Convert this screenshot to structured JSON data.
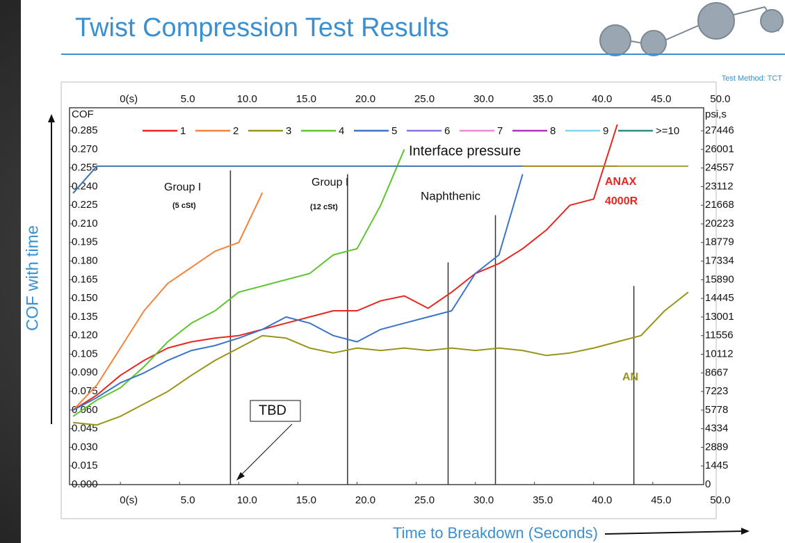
{
  "chart_data": {
    "type": "line",
    "title": "Twist Compression Test Results",
    "note": "Test Method: TCT",
    "x_label": "Time to Breakdown (Seconds)",
    "y_label": "COF with time",
    "y_unit": "COF",
    "y2_unit": "psi,s",
    "pressure_label": "Interface pressure",
    "legend": "top",
    "grid": false,
    "x": [
      -4,
      -2,
      0,
      2,
      4,
      6,
      8,
      10,
      12,
      14,
      16,
      18,
      20,
      22,
      24,
      26,
      28,
      30,
      32,
      34,
      36,
      38,
      40,
      42,
      44,
      46,
      48
    ],
    "xlim": [
      -4.3,
      49.3
    ],
    "xticks": [
      {
        "value": 0,
        "label": "0(s)"
      },
      {
        "value": 5,
        "label": "5.0"
      },
      {
        "value": 10,
        "label": "10.0"
      },
      {
        "value": 15,
        "label": "15.0"
      },
      {
        "value": 20,
        "label": "20.0"
      },
      {
        "value": 25,
        "label": "25.0"
      },
      {
        "value": 30,
        "label": "30.0"
      },
      {
        "value": 35,
        "label": "35.0"
      },
      {
        "value": 40,
        "label": "40.0"
      },
      {
        "value": 45,
        "label": "45.0"
      },
      {
        "value": 50,
        "label": "50.0"
      }
    ],
    "ylim": [
      0,
      0.3035
    ],
    "yticks": [
      {
        "value": 0,
        "label": "0.000"
      },
      {
        "value": 0.015,
        "label": "0.015"
      },
      {
        "value": 0.03,
        "label": "0.030"
      },
      {
        "value": 0.045,
        "label": "0.045"
      },
      {
        "value": 0.06,
        "label": "0.060"
      },
      {
        "value": 0.075,
        "label": "0.075"
      },
      {
        "value": 0.09,
        "label": "0.090"
      },
      {
        "value": 0.105,
        "label": "0.105"
      },
      {
        "value": 0.12,
        "label": "0.120"
      },
      {
        "value": 0.135,
        "label": "0.135"
      },
      {
        "value": 0.15,
        "label": "0.150"
      },
      {
        "value": 0.165,
        "label": "0.165"
      },
      {
        "value": 0.18,
        "label": "0.180"
      },
      {
        "value": 0.195,
        "label": "0.195"
      },
      {
        "value": 0.21,
        "label": "0.210"
      },
      {
        "value": 0.225,
        "label": "0.225"
      },
      {
        "value": 0.24,
        "label": "0.240"
      },
      {
        "value": 0.255,
        "label": "0.255"
      },
      {
        "value": 0.27,
        "label": "0.270"
      },
      {
        "value": 0.285,
        "label": "0.285"
      }
    ],
    "y2lim": [
      0,
      29229
    ],
    "y2ticks": [
      0,
      1445,
      2889,
      4334,
      5778,
      7223,
      8667,
      10112,
      11556,
      13001,
      14445,
      15890,
      17334,
      18779,
      20223,
      21668,
      23112,
      24557,
      26001,
      27446
    ],
    "series": [
      {
        "name": "1",
        "color": "#e8261f",
        "values": [
          0.06,
          0.072,
          0.088,
          0.1,
          0.11,
          0.115,
          0.118,
          0.12,
          0.125,
          0.13,
          0.135,
          0.14,
          0.14,
          0.148,
          0.152,
          0.142,
          0.155,
          0.17,
          0.178,
          0.19,
          0.205,
          0.225,
          0.23,
          0.29,
          null,
          null,
          null
        ],
        "pressure": [
          22600,
          24700,
          24700,
          24700,
          24700,
          24700,
          24700,
          24700,
          24700,
          24700,
          24700,
          24700,
          24700,
          24700,
          24700,
          24700,
          24700,
          24700,
          24700,
          24700,
          24700,
          24700,
          24700,
          24700,
          null,
          null,
          null
        ]
      },
      {
        "name": "2",
        "color": "#f5823a",
        "values": [
          0.06,
          0.08,
          0.11,
          0.14,
          0.162,
          0.175,
          0.188,
          0.195,
          0.235,
          null,
          null,
          null,
          null,
          null,
          null,
          null,
          null,
          null,
          null,
          null,
          null,
          null,
          null,
          null,
          null,
          null,
          null
        ],
        "pressure": [
          22600,
          24700,
          24700,
          24700,
          24700,
          24700,
          24700,
          24700,
          24700,
          null,
          null,
          null,
          null,
          null,
          null,
          null,
          null,
          null,
          null,
          null,
          null,
          null,
          null,
          null,
          null,
          null,
          null
        ]
      },
      {
        "name": "3",
        "color": "#999418",
        "values": [
          0.05,
          0.048,
          0.055,
          0.065,
          0.075,
          0.088,
          0.1,
          0.11,
          0.12,
          0.118,
          0.11,
          0.106,
          0.11,
          0.108,
          0.11,
          0.108,
          0.11,
          0.108,
          0.11,
          0.108,
          0.104,
          0.106,
          0.11,
          0.115,
          0.12,
          0.14,
          0.155
        ],
        "pressure": [
          22600,
          24700,
          24700,
          24700,
          24700,
          24700,
          24700,
          24700,
          24700,
          24700,
          24700,
          24700,
          24700,
          24700,
          24700,
          24700,
          24700,
          24700,
          24700,
          24700,
          24700,
          24700,
          24700,
          24700,
          24700,
          24700,
          24700
        ]
      },
      {
        "name": "4",
        "color": "#5cc42c",
        "values": [
          0.055,
          0.068,
          0.078,
          0.095,
          0.115,
          0.13,
          0.14,
          0.155,
          0.16,
          0.165,
          0.17,
          0.185,
          0.19,
          0.225,
          0.27,
          null,
          null,
          null,
          null,
          null,
          null,
          null,
          null,
          null,
          null,
          null,
          null
        ],
        "pressure": [
          22600,
          24700,
          24700,
          24700,
          24700,
          24700,
          24700,
          24700,
          24700,
          24700,
          24700,
          24700,
          24700,
          24700,
          24700,
          null,
          null,
          null,
          null,
          null,
          null,
          null,
          null,
          null,
          null,
          null,
          null
        ]
      },
      {
        "name": "5",
        "color": "#3b73c8",
        "values": [
          0.06,
          0.07,
          0.082,
          0.09,
          0.1,
          0.108,
          0.112,
          0.118,
          0.125,
          0.135,
          0.13,
          0.12,
          0.115,
          0.125,
          0.13,
          0.135,
          0.14,
          0.17,
          0.185,
          0.25,
          null,
          null,
          null,
          null,
          null,
          null,
          null
        ],
        "pressure": [
          22600,
          24700,
          24700,
          24700,
          24700,
          24700,
          24700,
          24700,
          24700,
          24700,
          24700,
          24700,
          24700,
          24700,
          24700,
          24700,
          24700,
          24700,
          24700,
          24700,
          null,
          null,
          null,
          null,
          null,
          null,
          null
        ]
      },
      {
        "name": "6",
        "color": "#8a6fe0",
        "values": [
          null,
          null,
          null,
          null,
          null,
          null,
          null,
          null,
          null,
          null,
          null,
          null,
          null,
          null,
          null,
          null,
          null,
          null,
          null,
          null,
          null,
          null,
          null,
          null,
          null,
          null,
          null
        ]
      },
      {
        "name": "7",
        "color": "#f08ad0",
        "values": [
          null,
          null,
          null,
          null,
          null,
          null,
          null,
          null,
          null,
          null,
          null,
          null,
          null,
          null,
          null,
          null,
          null,
          null,
          null,
          null,
          null,
          null,
          null,
          null,
          null,
          null,
          null
        ]
      },
      {
        "name": "8",
        "color": "#b02ec0",
        "values": [
          null,
          null,
          null,
          null,
          null,
          null,
          null,
          null,
          null,
          null,
          null,
          null,
          null,
          null,
          null,
          null,
          null,
          null,
          null,
          null,
          null,
          null,
          null,
          null,
          null,
          null,
          null
        ]
      },
      {
        "name": "9",
        "color": "#7fd8ec",
        "values": [
          null,
          null,
          null,
          null,
          null,
          null,
          null,
          null,
          null,
          null,
          null,
          null,
          null,
          null,
          null,
          null,
          null,
          null,
          null,
          null,
          null,
          null,
          null,
          null,
          null,
          null,
          null
        ]
      },
      {
        "name": ">=10",
        "color": "#2a8a86",
        "values": [
          null,
          null,
          null,
          null,
          null,
          null,
          null,
          null,
          null,
          null,
          null,
          null,
          null,
          null,
          null,
          null,
          null,
          null,
          null,
          null,
          null,
          null,
          null,
          null,
          null,
          null,
          null
        ]
      }
    ],
    "breakdown_markers": [
      {
        "x": 9.3,
        "cof": 0.253
      },
      {
        "x": 19.2,
        "cof": 0.25
      },
      {
        "x": 27.7,
        "cof": 0.179
      },
      {
        "x": 31.7,
        "cof": 0.217
      },
      {
        "x": 43.4,
        "cof": 0.16
      }
    ],
    "annotations": [
      "Group I",
      "(5 cSt)",
      "Group I",
      "(12 cSt)",
      "Naphthenic",
      "ANAX",
      "4000R",
      "AN",
      "TBD"
    ]
  }
}
